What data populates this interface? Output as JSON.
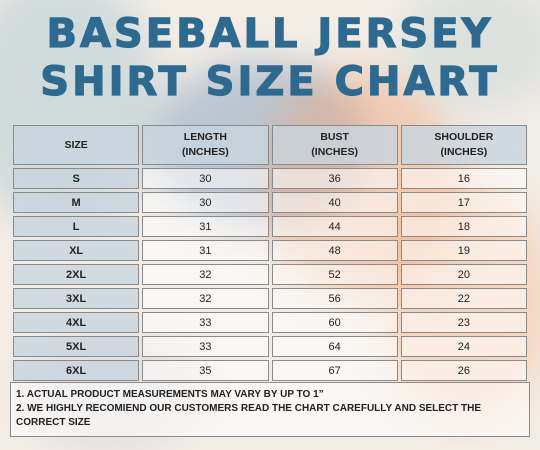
{
  "title": {
    "line1": "BASEBALL JERSEY",
    "line2": "SHIRT SIZE CHART"
  },
  "table": {
    "headers": [
      {
        "line1": "SIZE",
        "line2": ""
      },
      {
        "line1": "LENGTH",
        "line2": "(INCHES)"
      },
      {
        "line1": "BUST",
        "line2": "(INCHES)"
      },
      {
        "line1": "SHOULDER",
        "line2": "(INCHES)"
      }
    ],
    "rows": [
      {
        "size": "S",
        "length": "30",
        "bust": "36",
        "shoulder": "16"
      },
      {
        "size": "M",
        "length": "30",
        "bust": "40",
        "shoulder": "17"
      },
      {
        "size": "L",
        "length": "31",
        "bust": "44",
        "shoulder": "18"
      },
      {
        "size": "XL",
        "length": "31",
        "bust": "48",
        "shoulder": "19"
      },
      {
        "size": "2XL",
        "length": "32",
        "bust": "52",
        "shoulder": "20"
      },
      {
        "size": "3XL",
        "length": "32",
        "bust": "56",
        "shoulder": "22"
      },
      {
        "size": "4XL",
        "length": "33",
        "bust": "60",
        "shoulder": "23"
      },
      {
        "size": "5XL",
        "length": "33",
        "bust": "64",
        "shoulder": "24"
      },
      {
        "size": "6XL",
        "length": "35",
        "bust": "67",
        "shoulder": "26"
      }
    ]
  },
  "notes": [
    "1. ACTUAL PRODUCT MEASUREMENTS MAY VARY BY UP TO 1”",
    "2. WE HIGHLY RECOMIEND OUR CUSTOMERS READ THE CHART CAREFULLY AND SELECT THE CORRECT SIZE"
  ],
  "colors": {
    "title": "#2e6a8f",
    "header_bg": "#c8d4de"
  }
}
